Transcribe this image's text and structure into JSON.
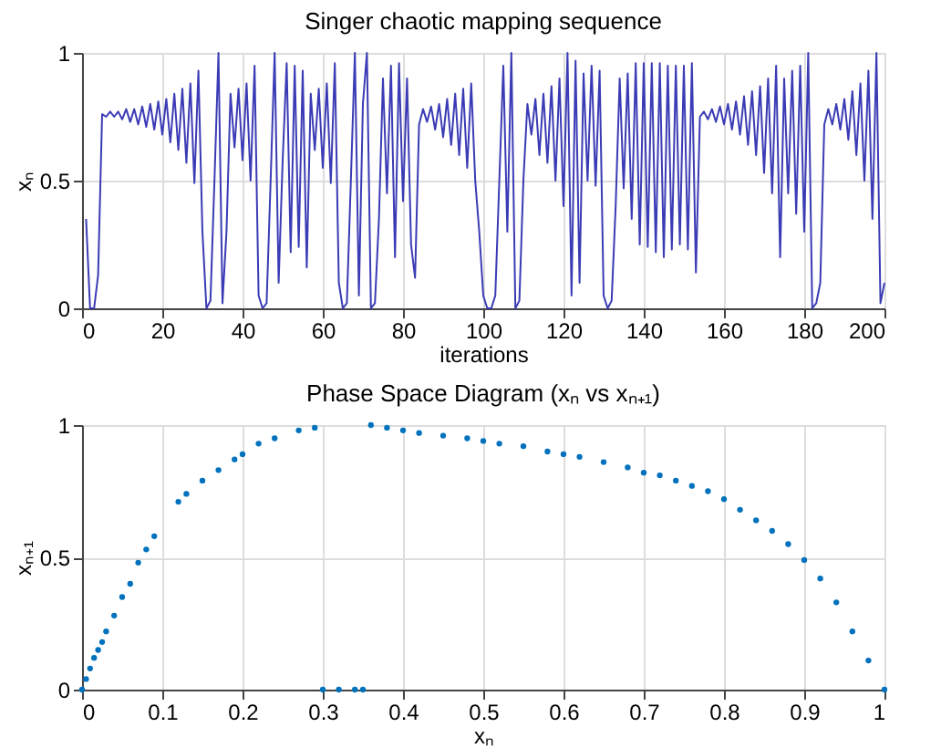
{
  "chart_data": [
    {
      "type": "line",
      "title": "Singer chaotic mapping sequence",
      "xlabel": "iterations",
      "ylabel": "xₙ",
      "xlim": [
        0,
        200
      ],
      "xticks": [
        0,
        20,
        40,
        60,
        80,
        100,
        120,
        140,
        160,
        180,
        200
      ],
      "ylim": [
        0,
        1
      ],
      "yticks": [
        0,
        0.5,
        1
      ],
      "grid": true,
      "line_style": "solid",
      "series": [
        {
          "color": "#3b3bb5",
          "x": [
            1,
            2,
            3,
            4,
            5,
            6,
            7,
            8,
            9,
            10,
            11,
            12,
            13,
            14,
            15,
            16,
            17,
            18,
            19,
            20,
            21,
            22,
            23,
            24,
            25,
            26,
            27,
            28,
            29,
            30,
            31,
            32,
            33,
            34,
            35,
            36,
            37,
            38,
            39,
            40,
            41,
            42,
            43,
            44,
            45,
            46,
            47,
            48,
            49,
            50,
            51,
            52,
            53,
            54,
            55,
            56,
            57,
            58,
            59,
            60,
            61,
            62,
            63,
            64,
            65,
            66,
            67,
            68,
            69,
            70,
            71,
            72,
            73,
            74,
            75,
            76,
            77,
            78,
            79,
            80,
            81,
            82,
            83,
            84,
            85,
            86,
            87,
            88,
            89,
            90,
            91,
            92,
            93,
            94,
            95,
            96,
            97,
            98,
            99,
            100,
            101,
            102,
            103,
            104,
            105,
            106,
            107,
            108,
            109,
            110,
            111,
            112,
            113,
            114,
            115,
            116,
            117,
            118,
            119,
            120,
            121,
            122,
            123,
            124,
            125,
            126,
            127,
            128,
            129,
            130,
            131,
            132,
            133,
            134,
            135,
            136,
            137,
            138,
            139,
            140,
            141,
            142,
            143,
            144,
            145,
            146,
            147,
            148,
            149,
            150,
            151,
            152,
            153,
            154,
            155,
            156,
            157,
            158,
            159,
            160,
            161,
            162,
            163,
            164,
            165,
            166,
            167,
            168,
            169,
            170,
            171,
            172,
            173,
            174,
            175,
            176,
            177,
            178,
            179,
            180,
            181,
            182,
            183,
            184,
            185,
            186,
            187,
            188,
            189,
            190,
            191,
            192,
            193,
            194,
            195,
            196,
            197,
            198,
            199,
            200
          ],
          "values": [
            0.35,
            0,
            0,
            0.13,
            0.76,
            0.75,
            0.77,
            0.75,
            0.77,
            0.74,
            0.78,
            0.73,
            0.78,
            0.72,
            0.79,
            0.71,
            0.8,
            0.7,
            0.81,
            0.68,
            0.82,
            0.65,
            0.84,
            0.62,
            0.86,
            0.57,
            0.88,
            0.49,
            0.93,
            0.3,
            0,
            0.03,
            0.5,
            1,
            0.02,
            0.3,
            0.84,
            0.63,
            0.86,
            0.58,
            0.88,
            0.5,
            0.95,
            0.05,
            0,
            0.02,
            0.5,
            1,
            0.1,
            0.58,
            0.96,
            0.22,
            0.95,
            0.24,
            0.93,
            0.16,
            0.84,
            0.62,
            0.86,
            0.55,
            0.88,
            0.49,
            0.96,
            0.1,
            0,
            0.02,
            0.5,
            1,
            0.05,
            0.8,
            1,
            0,
            0.02,
            0.35,
            0.9,
            0.45,
            0.95,
            0.2,
            0.96,
            0.42,
            0.9,
            0.25,
            0.12,
            0.72,
            0.78,
            0.73,
            0.79,
            0.7,
            0.8,
            0.67,
            0.82,
            0.64,
            0.84,
            0.6,
            0.86,
            0.55,
            0.88,
            0.5,
            0.3,
            0.05,
            0,
            0,
            0.05,
            0.5,
            0.95,
            0.3,
            1,
            0,
            0.03,
            0.5,
            0.8,
            0.68,
            0.82,
            0.6,
            0.84,
            0.57,
            0.87,
            0.5,
            0.9,
            0.4,
            1,
            0.05,
            0.97,
            0.1,
            0.92,
            0.5,
            0.95,
            0.48,
            0.93,
            0.05,
            0,
            0.03,
            0.4,
            0.9,
            0.47,
            0.92,
            0.35,
            0.96,
            0.25,
            0.96,
            0.24,
            0.96,
            0.22,
            0.96,
            0.2,
            0.95,
            0.23,
            0.95,
            0.25,
            0.95,
            0.23,
            0.96,
            0.14,
            0.75,
            0.77,
            0.74,
            0.78,
            0.73,
            0.79,
            0.72,
            0.8,
            0.7,
            0.81,
            0.68,
            0.83,
            0.64,
            0.85,
            0.6,
            0.87,
            0.53,
            0.9,
            0.45,
            0.95,
            0.2,
            0.9,
            0.45,
            0.93,
            0.37,
            0.95,
            0.3,
            1,
            0,
            0.02,
            0.1,
            0.72,
            0.78,
            0.72,
            0.8,
            0.7,
            0.82,
            0.66,
            0.85,
            0.6,
            0.88,
            0.5,
            0.93,
            0.35,
            1,
            0.02,
            0.1
          ]
        }
      ]
    },
    {
      "type": "scatter",
      "title": "Phase Space Diagram (xₙ vs xₙ₊₁)",
      "xlabel": "xₙ",
      "ylabel": "xₙ₊₁",
      "xlim": [
        0,
        1
      ],
      "xticks": [
        0,
        0.1,
        0.2,
        0.3,
        0.4,
        0.5,
        0.6,
        0.7,
        0.8,
        0.9,
        1
      ],
      "ylim": [
        0,
        1
      ],
      "yticks": [
        0,
        0.5,
        1
      ],
      "grid": true,
      "marker": "circle",
      "series": [
        {
          "color": "#0072bd",
          "x": [
            0,
            0.005,
            0.01,
            0.015,
            0.02,
            0.025,
            0.03,
            0.04,
            0.05,
            0.06,
            0.07,
            0.08,
            0.09,
            0.12,
            0.13,
            0.15,
            0.17,
            0.19,
            0.2,
            0.22,
            0.24,
            0.27,
            0.29,
            0.3,
            0.32,
            0.34,
            0.35,
            0.36,
            0.38,
            0.4,
            0.42,
            0.45,
            0.48,
            0.5,
            0.52,
            0.55,
            0.58,
            0.6,
            0.62,
            0.65,
            0.68,
            0.7,
            0.72,
            0.74,
            0.76,
            0.78,
            0.8,
            0.82,
            0.84,
            0.86,
            0.88,
            0.9,
            0.92,
            0.94,
            0.96,
            0.98,
            1
          ],
          "values": [
            0,
            0.04,
            0.08,
            0.12,
            0.15,
            0.18,
            0.22,
            0.28,
            0.35,
            0.4,
            0.48,
            0.53,
            0.58,
            0.71,
            0.74,
            0.79,
            0.83,
            0.87,
            0.89,
            0.93,
            0.95,
            0.98,
            0.99,
            0,
            0,
            0,
            0,
            1,
            0.99,
            0.98,
            0.97,
            0.96,
            0.95,
            0.94,
            0.93,
            0.92,
            0.9,
            0.89,
            0.88,
            0.86,
            0.84,
            0.82,
            0.81,
            0.79,
            0.77,
            0.75,
            0.72,
            0.68,
            0.64,
            0.6,
            0.55,
            0.49,
            0.42,
            0.33,
            0.22,
            0.11,
            0
          ]
        }
      ]
    }
  ]
}
